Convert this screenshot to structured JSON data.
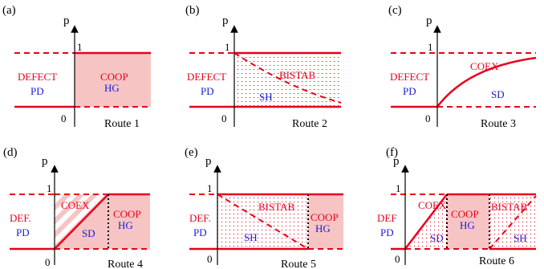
{
  "colors": {
    "red": "#e8001c",
    "blue": "#1c1cd6",
    "fill": "#f7c4c4",
    "black": "#000000"
  },
  "axis": {
    "y_label": "p",
    "one": "1",
    "zero": "0"
  },
  "panels": [
    {
      "tag": "(a)",
      "route": "Route 1",
      "labels": {
        "defect": "DEFECT",
        "pd": "PD",
        "coop": "COOP",
        "hg": "HG"
      }
    },
    {
      "tag": "(b)",
      "route": "Route 2",
      "labels": {
        "defect": "DEFECT",
        "pd": "PD",
        "bistab": "BISTAB",
        "sh": "SH"
      }
    },
    {
      "tag": "(c)",
      "route": "Route 3",
      "labels": {
        "defect": "DEFECT",
        "pd": "PD",
        "coex": "COEX",
        "sd": "SD"
      }
    },
    {
      "tag": "(d)",
      "route": "Route 4",
      "labels": {
        "def": "DEF.",
        "pd": "PD",
        "coex": "COEX",
        "sd": "SD",
        "coop": "COOP",
        "hg": "HG"
      }
    },
    {
      "tag": "(e)",
      "route": "Route 5",
      "labels": {
        "def": "DEF.",
        "pd": "PD",
        "bistab": "BISTAB",
        "sh": "SH",
        "coop": "COOP",
        "hg": "HG"
      }
    },
    {
      "tag": "(f)",
      "route": "Route 6",
      "labels": {
        "def": "DEF",
        "pd": "PD",
        "coex": "COEX",
        "sd": "SD",
        "coop": "COOP",
        "hg": "HG",
        "bistab": "BISTAB",
        "sh": "SH"
      }
    }
  ]
}
